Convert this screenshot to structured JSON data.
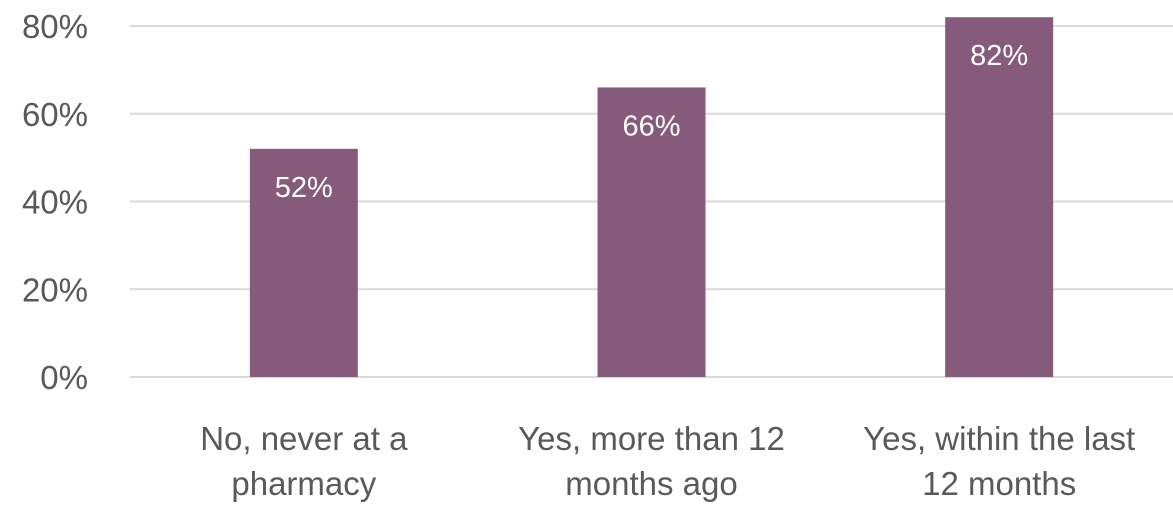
{
  "chart_data": {
    "type": "bar",
    "categories": [
      [
        "No, never at a",
        "pharmacy"
      ],
      [
        "Yes, more than 12",
        "months ago"
      ],
      [
        "Yes, within the last",
        "12 months"
      ]
    ],
    "values": [
      52,
      66,
      82
    ],
    "data_labels": [
      "52%",
      "66%",
      "82%"
    ],
    "ylim": [
      0,
      80
    ],
    "yticks": [
      0,
      20,
      40,
      60,
      80
    ],
    "ytick_labels": [
      "0%",
      "20%",
      "40%",
      "60%",
      "80%"
    ],
    "grid": true,
    "bar_color": "#865a7b",
    "title": "",
    "xlabel": "",
    "ylabel": ""
  }
}
